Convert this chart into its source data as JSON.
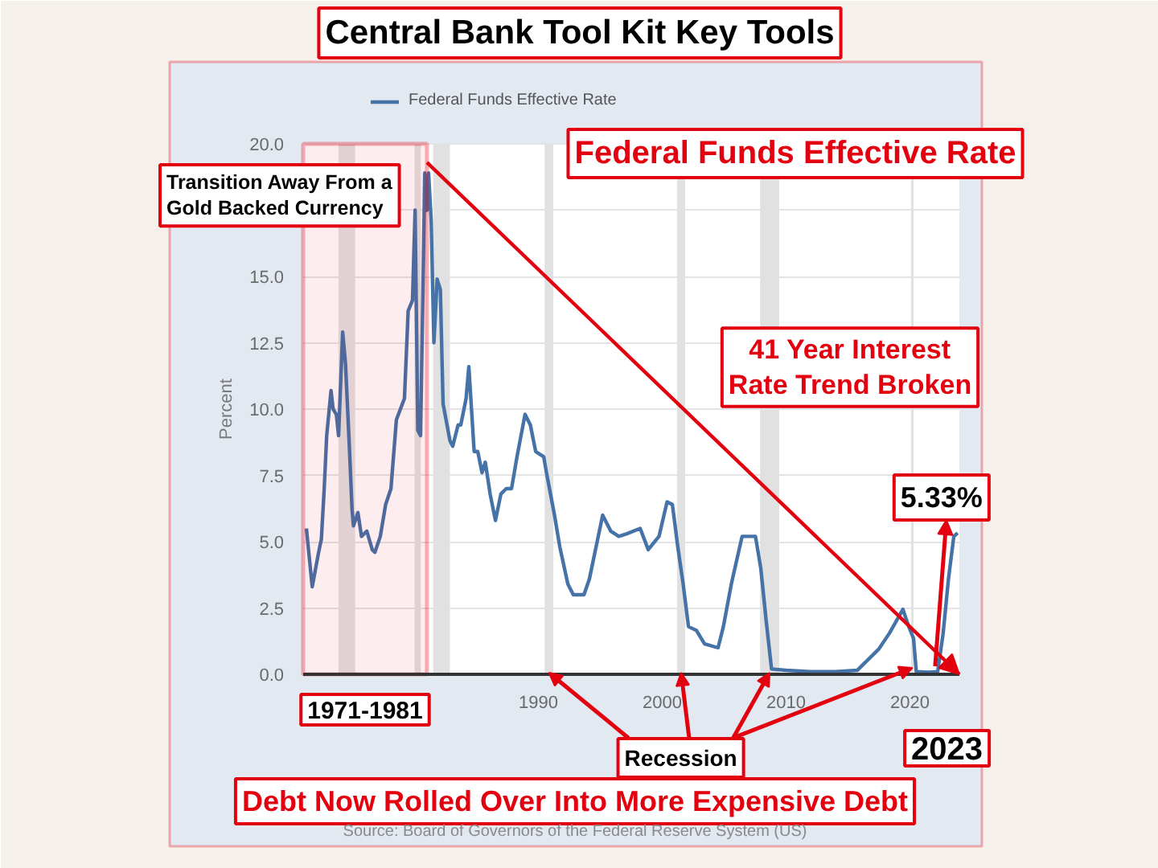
{
  "chart_data": {
    "type": "line",
    "title": "Central Bank Tool Kit Key Tools",
    "ylabel": "Percent",
    "x": [
      1971.26,
      1971.73,
      1972.25,
      1972.47,
      1972.7,
      1972.9,
      1973.25,
      1973.42,
      1973.68,
      1973.86,
      1974.19,
      1974.42,
      1974.71,
      1974.95,
      1975.06,
      1975.42,
      1975.71,
      1976.14,
      1976.58,
      1976.79,
      1977.23,
      1977.66,
      1978.09,
      1978.53,
      1979.18,
      1979.48,
      1979.83,
      1980.04,
      1980.26,
      1980.48,
      1980.69,
      1980.82,
      1981.0,
      1981.13,
      1981.34,
      1981.56,
      1981.82,
      1982.08,
      1982.3,
      1982.86,
      1983.08,
      1983.51,
      1983.73,
      1984.16,
      1984.38,
      1984.81,
      1985.1,
      1985.45,
      1985.71,
      1986.1,
      1986.53,
      1986.97,
      1987.4,
      1987.83,
      1988.27,
      1988.92,
      1989.35,
      1989.78,
      1990.43,
      1990.65,
      1991.3,
      1991.73,
      1992.38,
      1992.82,
      1993.68,
      1994.12,
      1995.19,
      1995.84,
      1996.49,
      1997.14,
      1998.22,
      1998.87,
      1999.74,
      2000.39,
      2000.82,
      2001.26,
      2001.69,
      2002.12,
      2002.77,
      2003.42,
      2004.51,
      2004.94,
      2005.58,
      2006.45,
      2007.53,
      2007.96,
      2008.4,
      2008.83,
      2010.0,
      2012.0,
      2014.0,
      2015.75,
      2016.19,
      2017.49,
      2018.35,
      2019.44,
      2019.87,
      2020.3,
      2020.52,
      2021.5,
      2022.25,
      2022.69,
      2023.12,
      2023.55,
      2023.86
    ],
    "series": [
      {
        "name": "Federal Funds Effective Rate",
        "color": "#4572a7",
        "values": [
          5.5,
          3.3,
          4.6,
          5.1,
          7.0,
          9.0,
          10.7,
          10.0,
          9.8,
          9.0,
          12.9,
          11.7,
          8.8,
          6.2,
          5.6,
          6.1,
          5.2,
          5.4,
          4.7,
          4.6,
          5.2,
          6.4,
          7.0,
          9.6,
          10.4,
          13.7,
          14.1,
          17.5,
          9.2,
          9.0,
          14.9,
          18.9,
          17.5,
          18.9,
          17.1,
          12.5,
          14.9,
          14.5,
          10.2,
          8.8,
          8.6,
          9.4,
          9.4,
          10.4,
          11.6,
          8.4,
          8.4,
          7.6,
          8.0,
          6.8,
          5.8,
          6.8,
          7.0,
          7.0,
          8.2,
          9.8,
          9.4,
          8.4,
          8.2,
          7.6,
          6.0,
          4.8,
          3.4,
          3.0,
          3.0,
          3.6,
          6.0,
          5.4,
          5.2,
          5.3,
          5.5,
          4.7,
          5.2,
          6.5,
          6.4,
          4.8,
          3.4,
          1.8,
          1.65,
          1.15,
          1.0,
          1.8,
          3.4,
          5.2,
          5.2,
          4.0,
          2.0,
          0.2,
          0.15,
          0.1,
          0.1,
          0.15,
          0.35,
          0.95,
          1.55,
          2.45,
          1.85,
          1.35,
          0.1,
          0.08,
          0.1,
          1.55,
          3.6,
          5.2,
          5.33
        ]
      },
      {
        "type": "line",
        "color": "#e3000f",
        "x": [
          1981.0,
          2024.0
        ],
        "values": [
          19.3,
          0.0
        ]
      }
    ],
    "xlim": [
      1971,
      2024
    ],
    "xticks": [
      1990,
      2000,
      2010,
      2020
    ],
    "ylim": [
      0,
      20
    ],
    "yticks": [
      {
        "value": 0,
        "label": "0.0"
      },
      2.5,
      {
        "value": 5,
        "label": "5.0"
      },
      7.5,
      {
        "value": 10,
        "label": "10.0"
      },
      12.5,
      {
        "value": 15,
        "label": "15.0"
      },
      {
        "value": 17.5,
        "label": null
      },
      {
        "value": 20,
        "label": "20.0"
      }
    ],
    "grid": "y",
    "legend": "top left",
    "bands": [
      {
        "axis": "x",
        "from": 1971,
        "to": 1981,
        "label": "1971-1981",
        "color": "#e3000f"
      },
      {
        "axis": "x",
        "from": 1973.85,
        "to": 1975.2,
        "color": "#e1e1e1"
      },
      {
        "axis": "x",
        "from": 1980.0,
        "to": 1980.5,
        "color": "#e1e1e1"
      },
      {
        "axis": "x",
        "from": 1981.5,
        "to": 1982.85,
        "color": "#e1e1e1"
      },
      {
        "axis": "x",
        "from": 1990.5,
        "to": 1991.2,
        "color": "#e1e1e1"
      },
      {
        "axis": "x",
        "from": 2001.2,
        "to": 2001.85,
        "color": "#e1e1e1"
      },
      {
        "axis": "x",
        "from": 2007.9,
        "to": 2009.45,
        "color": "#e1e1e1"
      },
      {
        "axis": "x",
        "from": 2020.1,
        "to": 2020.3,
        "color": "#e1e1e1"
      }
    ],
    "annotations": [
      "Federal Funds Effective Rate",
      "Transition Away From a Gold Backed Currency",
      "41 Year Interest Rate Trend Broken",
      {
        "text": "5.33%",
        "x": 2023.86,
        "y": 5.33
      },
      {
        "text": "2023",
        "x": 2023,
        "y": 0
      },
      {
        "text": "Recession",
        "x": 2001.5,
        "y": 0
      },
      "Debt Now Rolled Over Into More Expensive Debt",
      "Source: Board of Governors of the Federal Reserve System (US)"
    ]
  }
}
